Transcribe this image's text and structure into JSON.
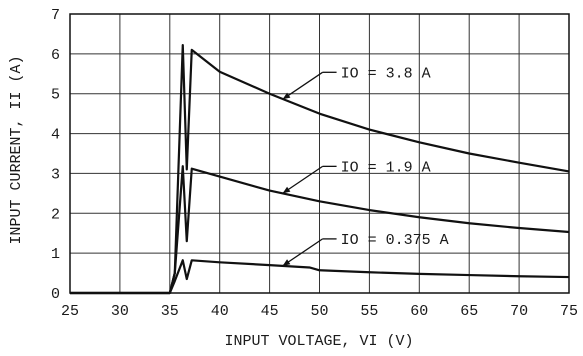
{
  "chart_data": {
    "type": "line",
    "xlabel": "INPUT VOLTAGE, VI (V)",
    "ylabel": "INPUT CURRENT, II (A)",
    "xlim": [
      25,
      75
    ],
    "ylim": [
      0,
      7
    ],
    "xticks": [
      "25",
      "30",
      "35",
      "40",
      "45",
      "50",
      "55",
      "60",
      "65",
      "70",
      "75"
    ],
    "yticks": [
      "0",
      "1",
      "2",
      "3",
      "4",
      "5",
      "6",
      "7"
    ],
    "grid": true,
    "series": [
      {
        "name": "IO = 3.8 A",
        "x": [
          25,
          35.0,
          35.5,
          36.3,
          36.7,
          37.2,
          40,
          45,
          50,
          55,
          60,
          65,
          70,
          75
        ],
        "y": [
          0,
          0,
          0.5,
          6.22,
          3.1,
          6.1,
          5.55,
          5.0,
          4.5,
          4.1,
          3.78,
          3.5,
          3.27,
          3.05
        ]
      },
      {
        "name": "IO = 1.9 A",
        "x": [
          25,
          35.0,
          35.5,
          36.3,
          36.7,
          37.2,
          40,
          45,
          50,
          55,
          60,
          65,
          70,
          75
        ],
        "y": [
          0,
          0,
          0.5,
          3.18,
          1.3,
          3.12,
          2.92,
          2.57,
          2.3,
          2.08,
          1.9,
          1.75,
          1.63,
          1.53
        ]
      },
      {
        "name": "IO = 0.375 A",
        "x": [
          25,
          35.0,
          35.5,
          36.3,
          36.7,
          37.2,
          40,
          45,
          49,
          50,
          55,
          60,
          65,
          70,
          75
        ],
        "y": [
          0,
          0,
          0.3,
          0.82,
          0.35,
          0.82,
          0.77,
          0.7,
          0.64,
          0.57,
          0.52,
          0.48,
          0.45,
          0.42,
          0.4
        ]
      }
    ],
    "annotations": [
      {
        "label": "IO = 3.8 A",
        "series": 0,
        "point_x": 46.3,
        "point_y": 4.86
      },
      {
        "label": "IO = 1.9 A",
        "series": 1,
        "point_x": 46.3,
        "point_y": 2.5
      },
      {
        "label": "IO = 0.375 A",
        "series": 2,
        "point_x": 46.3,
        "point_y": 0.68
      }
    ]
  }
}
